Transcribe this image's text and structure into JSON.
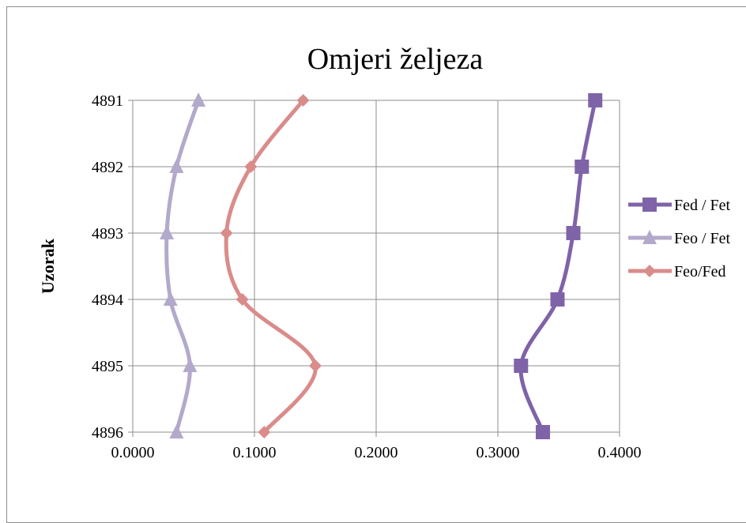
{
  "chart_data": {
    "type": "line",
    "title": "Omjeri željeza",
    "xlabel": "",
    "ylabel": "Uzorak",
    "xlim": [
      0,
      0.4
    ],
    "x_ticks": [
      "0.0000",
      "0.1000",
      "0.2000",
      "0.3000",
      "0.4000"
    ],
    "categories": [
      "4891",
      "4892",
      "4893",
      "4894",
      "4895",
      "4896"
    ],
    "grid": true,
    "legend_position": "right",
    "series": [
      {
        "name": "Fed / Fet",
        "marker": "square",
        "color": "#7f63a8",
        "values": [
          0.38,
          0.369,
          0.362,
          0.349,
          0.319,
          0.337
        ]
      },
      {
        "name": "Feo / Fet",
        "marker": "triangle",
        "color": "#b3a9cb",
        "values": [
          0.054,
          0.036,
          0.028,
          0.031,
          0.047,
          0.036
        ]
      },
      {
        "name": "Feo/Fed",
        "marker": "diamond",
        "color": "#d98c8a",
        "values": [
          0.14,
          0.097,
          0.077,
          0.09,
          0.15,
          0.108
        ]
      }
    ]
  }
}
